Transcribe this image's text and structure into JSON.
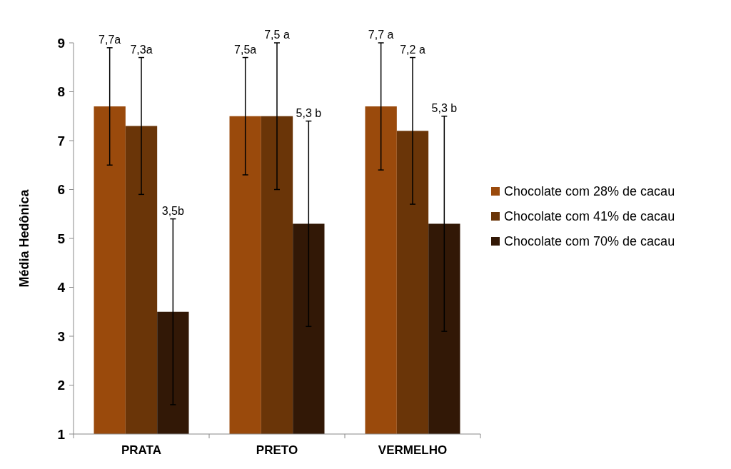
{
  "chart_data": {
    "type": "bar",
    "ylabel": "Média Hedônica",
    "categories": [
      "PRATA",
      "PRETO",
      "VERMELHO"
    ],
    "series": [
      {
        "name": "Chocolate com 28% de cacau",
        "color": "#9a4a0c",
        "values": [
          7.7,
          7.5,
          7.7
        ],
        "errors": [
          [
            6.5,
            8.9
          ],
          [
            6.3,
            8.7
          ],
          [
            6.4,
            9.0
          ]
        ]
      },
      {
        "name": "Chocolate com 41% de cacau",
        "color": "#6a3508",
        "values": [
          7.3,
          7.5,
          7.2
        ],
        "errors": [
          [
            5.9,
            8.7
          ],
          [
            6.0,
            9.0
          ],
          [
            5.7,
            8.7
          ]
        ]
      },
      {
        "name": "Chocolate com 70% de cacau",
        "color": "#321806",
        "values": [
          3.5,
          5.3,
          5.3
        ],
        "errors": [
          [
            1.6,
            5.4
          ],
          [
            3.2,
            7.4
          ],
          [
            3.1,
            7.5
          ]
        ]
      }
    ],
    "annotations": [
      "7,7a",
      "7,3a",
      "3,5b",
      "7,5a",
      "7,5 a",
      "5,3 b",
      "7,7 a",
      "7,2 a",
      "5,3 b"
    ],
    "ylim": [
      1,
      9
    ],
    "yticks": [
      1,
      2,
      3,
      4,
      5,
      6,
      7,
      8,
      9
    ],
    "grid": false,
    "legend": "right"
  }
}
